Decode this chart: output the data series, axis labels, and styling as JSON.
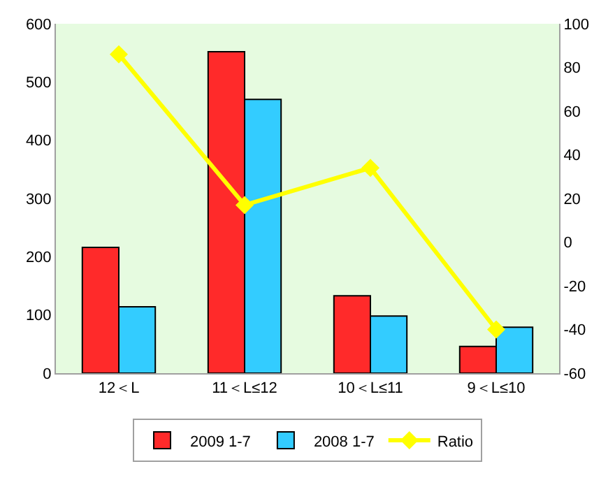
{
  "chart_data": {
    "type": "bar",
    "categories": [
      "12＜L",
      "11＜L≤12",
      "10＜L≤11",
      "9＜L≤10"
    ],
    "series": [
      {
        "name": "2009 1-7",
        "color": "#ff2a2a",
        "values": [
          216,
          552,
          133,
          46
        ]
      },
      {
        "name": "2008 1-7",
        "color": "#33ccff",
        "values": [
          114,
          470,
          98,
          79
        ]
      },
      {
        "name": "Ratio",
        "type": "line",
        "axis": "y2",
        "color": "#ffff00",
        "marker": "diamond",
        "values": [
          86,
          17,
          34,
          -40
        ]
      }
    ],
    "ylim": [
      0,
      600
    ],
    "yticks": [
      0,
      100,
      200,
      300,
      400,
      500,
      600
    ],
    "y2lim": [
      -60,
      100
    ],
    "y2ticks": [
      -60,
      -40,
      -20,
      0,
      20,
      40,
      60,
      80,
      100
    ],
    "grid": false,
    "legend": "bottom"
  }
}
